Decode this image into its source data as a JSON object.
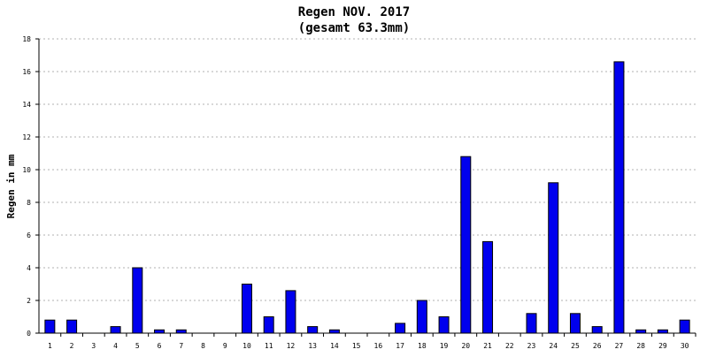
{
  "chart_data": {
    "type": "bar",
    "title": "Regen NOV. 2017",
    "subtitle": "(gesamt 63.3mm)",
    "xlabel": "",
    "ylabel": "Regen in mm",
    "ylim": [
      0,
      18
    ],
    "yticks": [
      "0",
      "2",
      "4",
      "6",
      "8",
      "10",
      "12",
      "14",
      "16",
      "18"
    ],
    "categories": [
      "1",
      "2",
      "3",
      "4",
      "5",
      "6",
      "7",
      "8",
      "9",
      "10",
      "11",
      "12",
      "13",
      "14",
      "15",
      "16",
      "17",
      "18",
      "19",
      "20",
      "21",
      "22",
      "23",
      "24",
      "25",
      "26",
      "27",
      "28",
      "29",
      "30"
    ],
    "values": [
      0.8,
      0.8,
      0,
      0.4,
      4.0,
      0.2,
      0.2,
      0,
      0,
      3.0,
      1.0,
      2.6,
      0.4,
      0.2,
      0,
      0,
      0.6,
      2.0,
      1.0,
      10.8,
      5.6,
      0,
      1.2,
      9.2,
      1.2,
      0.4,
      16.6,
      0.2,
      0.2,
      0.8
    ],
    "grid": true,
    "bar_color": "#0000ee",
    "grid_color": "#b0b0b0"
  }
}
